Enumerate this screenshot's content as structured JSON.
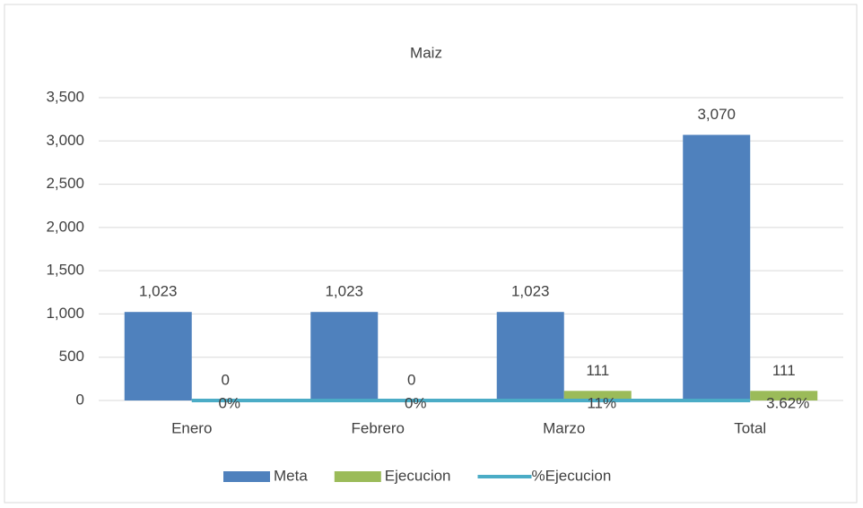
{
  "chart_data": {
    "type": "bar",
    "title": "Maiz",
    "categories": [
      "Enero",
      "Febrero",
      "Marzo",
      "Total"
    ],
    "series": [
      {
        "name": "Meta",
        "color": "#4f81bd",
        "values": [
          1023,
          1023,
          1023,
          3070
        ],
        "value_labels": [
          "1,023",
          "1,023",
          "1,023",
          "3,070"
        ]
      },
      {
        "name": "Ejecucion",
        "color": "#9bbb59",
        "values": [
          0,
          0,
          111,
          111
        ],
        "value_labels": [
          "0",
          "0",
          "111",
          "111"
        ]
      },
      {
        "name": "%Ejecucion",
        "type": "line",
        "color": "#4bacc6",
        "values": [
          0,
          0,
          0.11,
          0.0362
        ],
        "value_labels": [
          "0%",
          "0%",
          "11%",
          "3.62%"
        ]
      }
    ],
    "ylim": [
      0,
      3500
    ],
    "yticks": [
      0,
      500,
      {
        "value": 1000,
        "label": "1,000"
      },
      {
        "value": 1500,
        "label": "1,500"
      },
      {
        "value": 2000,
        "label": "2,000"
      },
      {
        "value": 2500,
        "label": "2,500"
      },
      {
        "value": 3000,
        "label": "3,000"
      },
      {
        "value": 3500,
        "label": "3,500"
      }
    ],
    "grid": true,
    "legend": "bottom"
  }
}
